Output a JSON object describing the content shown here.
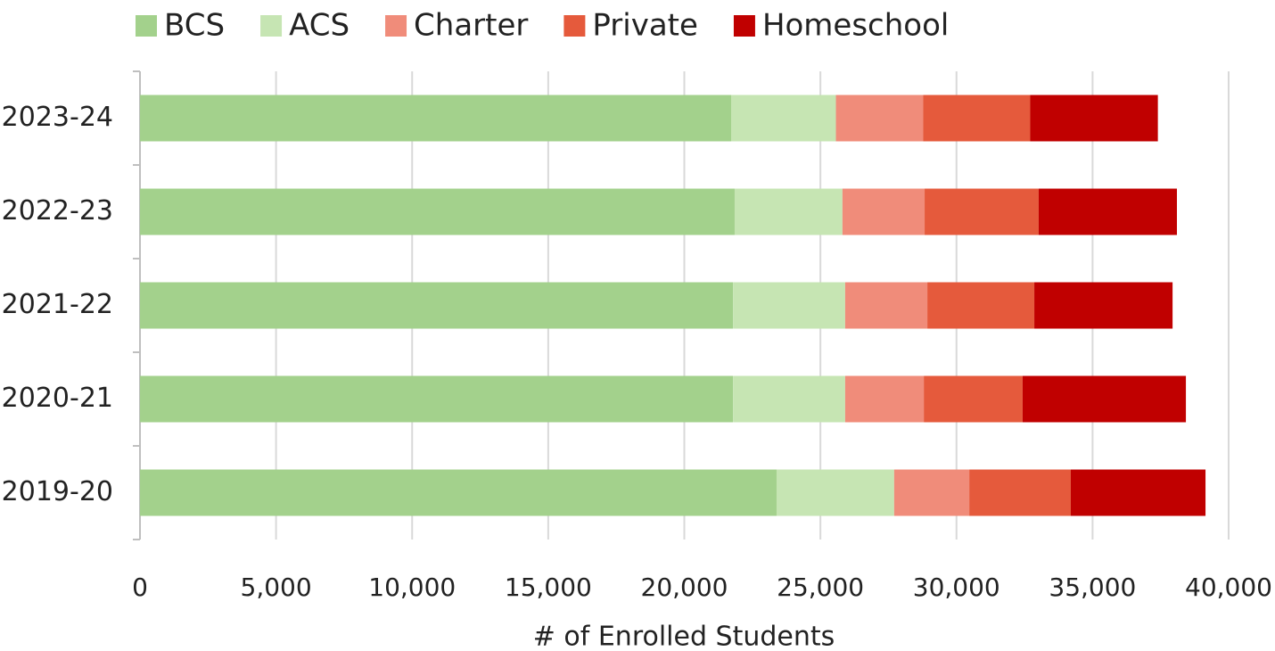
{
  "chart_data": {
    "type": "stacked_barh",
    "categories": [
      "2023-24",
      "2022-23",
      "2021-22",
      "2020-21",
      "2019-20"
    ],
    "series": [
      {
        "name": "BCS",
        "color": "#a3d18c",
        "values": [
          21720,
          21850,
          21790,
          21790,
          23390
        ]
      },
      {
        "name": "ACS",
        "color": "#c6e5b3",
        "values": [
          3850,
          3960,
          4120,
          4120,
          4320
        ]
      },
      {
        "name": "Charter",
        "color": "#f08c7a",
        "values": [
          3210,
          3020,
          3020,
          2890,
          2760
        ]
      },
      {
        "name": "Private",
        "color": "#e55a3c",
        "values": [
          3930,
          4190,
          3930,
          3630,
          3730
        ]
      },
      {
        "name": "Homeschool",
        "color": "#c00000",
        "values": [
          4690,
          5080,
          5080,
          6000,
          4950
        ]
      }
    ],
    "xlabel": "# of Enrolled Students",
    "xlim": [
      0,
      40000
    ],
    "xticks": [
      0,
      {
        "value": 5000,
        "label": "5,000"
      },
      {
        "value": 10000,
        "label": "10,000"
      },
      {
        "value": 15000,
        "label": "15,000"
      },
      {
        "value": 20000,
        "label": "20,000"
      },
      {
        "value": 25000,
        "label": "25,000"
      },
      {
        "value": 30000,
        "label": "30,000"
      },
      {
        "value": 35000,
        "label": "35,000"
      },
      {
        "value": 40000,
        "label": "40,000"
      }
    ],
    "grid": true,
    "legend": "top"
  }
}
